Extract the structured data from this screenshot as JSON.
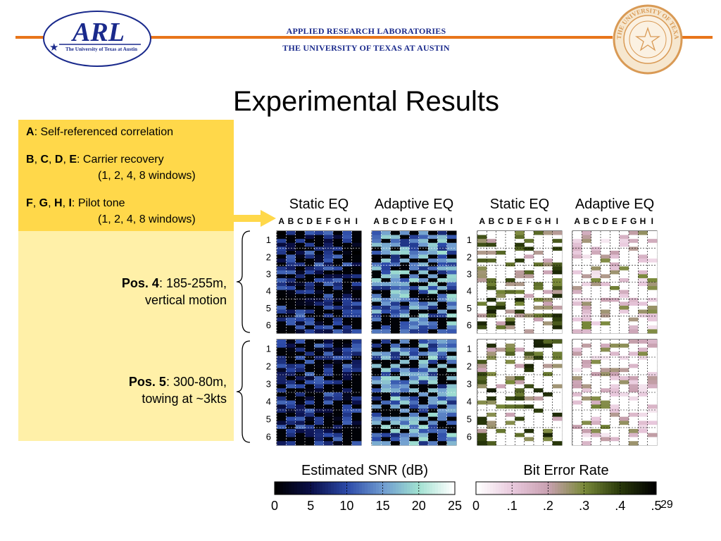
{
  "header": {
    "logo_text": "ARL",
    "logo_subtext": "The University of Texas at Austin",
    "org_line1": "APPLIED RESEARCH LABORATORIES",
    "org_line2": "THE UNIVERSITY OF TEXAS AT AUSTIN",
    "seal_text": "THE UNIVERSITY OF TEXAS AT AUSTIN",
    "accent_color": "#E8751A",
    "org_color": "#1a2a8c"
  },
  "title": "Experimental Results",
  "legend": {
    "line1_key": "A",
    "line1_text": ": Self-referenced correlation",
    "line2_keys": [
      "B",
      "C",
      "D",
      "E"
    ],
    "line2_text": ": Carrier recovery",
    "line2_sub": "(1, 2, 4, 8 windows)",
    "line3_keys": [
      "F",
      "G",
      "H",
      "I"
    ],
    "line3_text": ": Pilot tone",
    "line3_sub": "(1, 2, 4, 8 windows)"
  },
  "positions": [
    {
      "label": "Pos. 4",
      "text1": ": 185-255m,",
      "text2": "vertical motion"
    },
    {
      "label": "Pos. 5",
      "text1": ": 300-80m,",
      "text2": "towing at ~3kts"
    }
  ],
  "page_number": "29",
  "chart_data": [
    {
      "type": "heatmap",
      "title": "Static EQ",
      "group": "Estimated SNR (dB)",
      "columns": [
        "A",
        "B",
        "C",
        "D",
        "E",
        "F",
        "G",
        "H",
        "I"
      ],
      "row_labels": [
        "1",
        "2",
        "3",
        "4",
        "5",
        "6"
      ]
    },
    {
      "type": "heatmap",
      "title": "Adaptive EQ",
      "group": "Estimated SNR (dB)",
      "columns": [
        "A",
        "B",
        "C",
        "D",
        "E",
        "F",
        "G",
        "H",
        "I"
      ],
      "row_labels": [
        "1",
        "2",
        "3",
        "4",
        "5",
        "6"
      ]
    },
    {
      "type": "heatmap",
      "title": "Static EQ",
      "group": "Bit Error Rate",
      "columns": [
        "A",
        "B",
        "C",
        "D",
        "E",
        "F",
        "G",
        "H",
        "I"
      ],
      "row_labels": [
        "1",
        "2",
        "3",
        "4",
        "5",
        "6"
      ]
    },
    {
      "type": "heatmap",
      "title": "Adaptive EQ",
      "group": "Bit Error Rate",
      "columns": [
        "A",
        "B",
        "C",
        "D",
        "E",
        "F",
        "G",
        "H",
        "I"
      ],
      "row_labels": [
        "1",
        "2",
        "3",
        "4",
        "5",
        "6"
      ]
    }
  ],
  "colorbars": [
    {
      "label": "Estimated SNR (dB)",
      "ticks": [
        "0",
        "5",
        "10",
        "15",
        "20",
        "25"
      ],
      "colors": [
        "#000000",
        "#0a0f4a",
        "#2c4aa8",
        "#6e9ad0",
        "#9fe0d0",
        "#ffffff"
      ]
    },
    {
      "label": "Bit Error Rate",
      "ticks": [
        "0",
        ".1",
        ".2",
        ".3",
        ".4",
        ".5"
      ],
      "colors": [
        "#ffffff",
        "#e8c8dc",
        "#c8a0b0",
        "#7a8a3a",
        "#2a3a0a",
        "#000000"
      ]
    }
  ]
}
